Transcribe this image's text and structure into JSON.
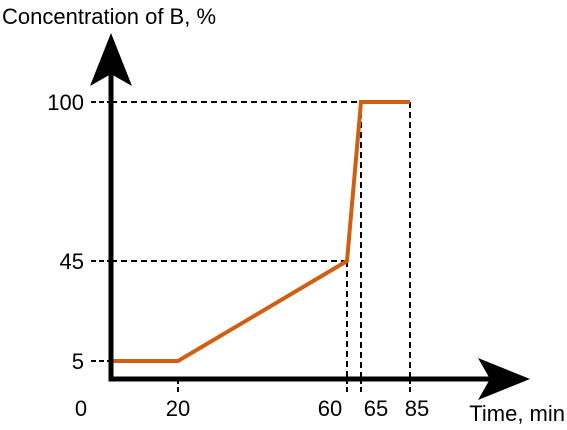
{
  "chart_data": {
    "type": "line",
    "xlabel": "Time, min",
    "ylabel": "Concentration of B, %",
    "x_ticks": [
      0,
      20,
      60,
      65,
      85
    ],
    "y_ticks": [
      5,
      45,
      100
    ],
    "xlim": [
      0,
      85
    ],
    "ylim": [
      5,
      100
    ],
    "series": [
      {
        "x": [
          0,
          20,
          60,
          65,
          85
        ],
        "y": [
          5,
          5,
          45,
          100,
          100
        ]
      }
    ],
    "grid": false,
    "reference_lines": "dashed guide lines from the breakpoints to both axes",
    "colors": {
      "line": "#d15f12",
      "axis": "#000000",
      "guide": "#000000"
    }
  }
}
